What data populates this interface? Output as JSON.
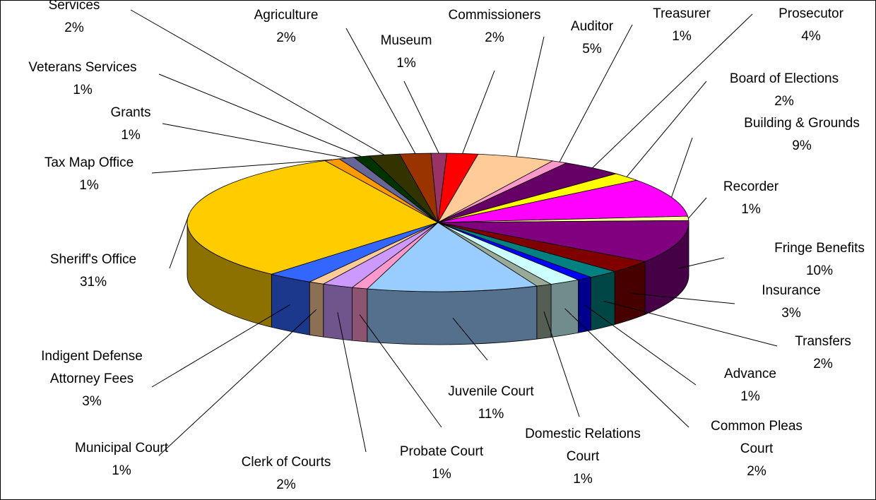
{
  "chart_data": {
    "type": "pie3d",
    "categories": [
      "Commissioners",
      "Auditor",
      "Treasurer",
      "Prosecutor",
      "Board of Elections",
      "Building & Grounds",
      "Recorder",
      "Fringe Benefits",
      "Insurance",
      "Transfers",
      "Advance",
      "Common Pleas Court",
      "Domestic Relations Court",
      "Juvenile Court",
      "Probate Court",
      "Clerk of Courts",
      "Municipal Court",
      "Indigent Defense Attorney Fees",
      "Sheriff's Office",
      "Tax Map Office",
      "Grants",
      "Veterans Services",
      "Services",
      "Agriculture",
      "Museum"
    ],
    "values": [
      2,
      5,
      1,
      4,
      2,
      9,
      1,
      10,
      3,
      2,
      1,
      2,
      1,
      11,
      1,
      2,
      1,
      3,
      31,
      1,
      1,
      1,
      2,
      2,
      1
    ],
    "value_labels": [
      "2%",
      "5%",
      "1%",
      "4%",
      "2%",
      "9%",
      "1%",
      "10%",
      "3%",
      "2%",
      "1%",
      "2%",
      "1%",
      "11%",
      "1%",
      "2%",
      "1%",
      "3%",
      "31%",
      "1%",
      "1%",
      "1%",
      "2%",
      "2%",
      "1%"
    ],
    "colors": [
      "#ff0000",
      "#ffcc99",
      "#ff99cc",
      "#660066",
      "#ffff00",
      "#ff00ff",
      "#ffff99",
      "#800080",
      "#800000",
      "#008080",
      "#0000ff",
      "#ccffff",
      "#99aa99",
      "#99ccff",
      "#ff99cc",
      "#cc99ff",
      "#ffcc99",
      "#3366ff",
      "#ffcc00",
      "#ff9900",
      "#666699",
      "#003300",
      "#333300",
      "#993300",
      "#993366"
    ]
  }
}
